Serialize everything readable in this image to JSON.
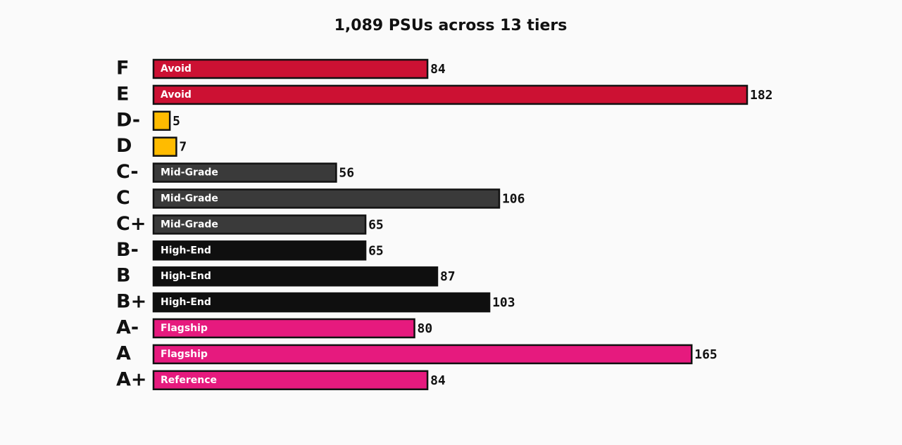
{
  "chart_data": {
    "type": "bar",
    "orientation": "horizontal",
    "title": "1,089 PSUs across 13 tiers",
    "categories": [
      "F",
      "E",
      "D-",
      "D",
      "C-",
      "C",
      "C+",
      "B-",
      "B",
      "B+",
      "A-",
      "A",
      "A+"
    ],
    "values": [
      84,
      182,
      5,
      7,
      56,
      106,
      65,
      65,
      87,
      103,
      80,
      165,
      84
    ],
    "bar_labels": [
      "Avoid",
      "Avoid",
      null,
      null,
      "Mid-Grade",
      "Mid-Grade",
      "Mid-Grade",
      "High-End",
      "High-End",
      "High-End",
      "Flagship",
      "Flagship",
      "Reference"
    ],
    "colors": [
      "#cc1133",
      "#cc1133",
      "#ffbb00",
      "#ffbb00",
      "#3a3a3a",
      "#3a3a3a",
      "#3a3a3a",
      "#0f0f0f",
      "#0f0f0f",
      "#0f0f0f",
      "#e61a7e",
      "#e61a7e",
      "#e61a7e"
    ]
  }
}
